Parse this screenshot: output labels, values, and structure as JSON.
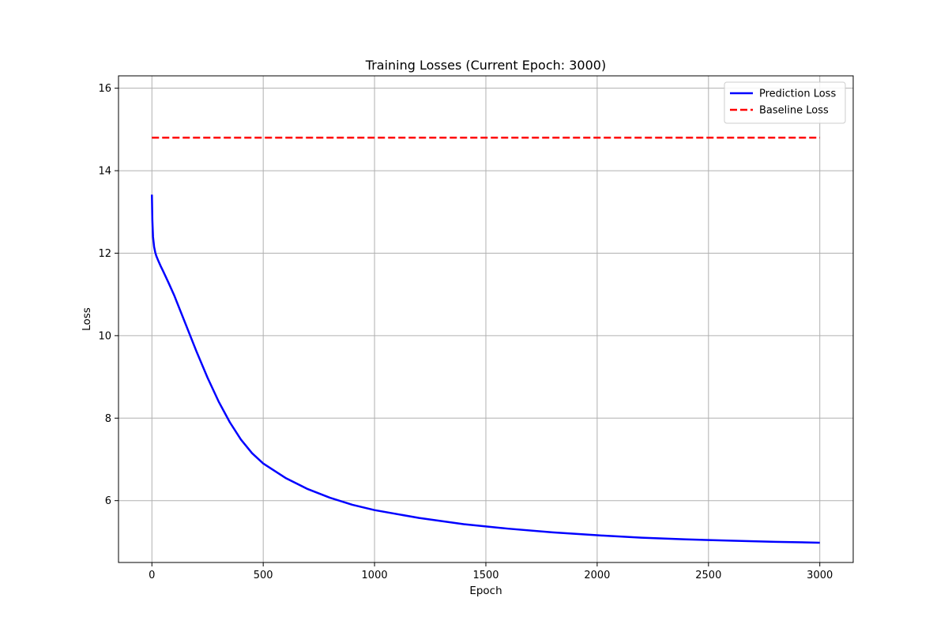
{
  "chart_data": {
    "type": "line",
    "title": "Training Losses (Current Epoch: 3000)",
    "xlabel": "Epoch",
    "ylabel": "Loss",
    "xlim": [
      -150,
      3150
    ],
    "ylim": [
      4.5,
      16.3
    ],
    "xticks": [
      0,
      500,
      1000,
      1500,
      2000,
      2500,
      3000
    ],
    "yticks": [
      6,
      8,
      10,
      12,
      14,
      16
    ],
    "grid": true,
    "legend_position": "top-right",
    "series": [
      {
        "name": "Prediction Loss",
        "color": "#0000ff",
        "style": "solid",
        "x": [
          0,
          2,
          5,
          10,
          15,
          20,
          30,
          40,
          50,
          75,
          100,
          150,
          200,
          250,
          300,
          350,
          400,
          450,
          500,
          600,
          700,
          800,
          900,
          1000,
          1200,
          1400,
          1600,
          1800,
          2000,
          2200,
          2400,
          2600,
          2800,
          3000
        ],
        "y": [
          13.42,
          12.8,
          12.4,
          12.15,
          12.02,
          11.93,
          11.8,
          11.68,
          11.57,
          11.28,
          10.98,
          10.3,
          9.62,
          8.98,
          8.4,
          7.9,
          7.48,
          7.15,
          6.9,
          6.55,
          6.28,
          6.07,
          5.9,
          5.77,
          5.58,
          5.43,
          5.32,
          5.23,
          5.16,
          5.1,
          5.06,
          5.03,
          5.0,
          4.98
        ]
      },
      {
        "name": "Baseline Loss",
        "color": "#ff0000",
        "style": "dashed",
        "x": [
          0,
          3000
        ],
        "y": [
          14.8,
          14.8
        ]
      }
    ]
  }
}
